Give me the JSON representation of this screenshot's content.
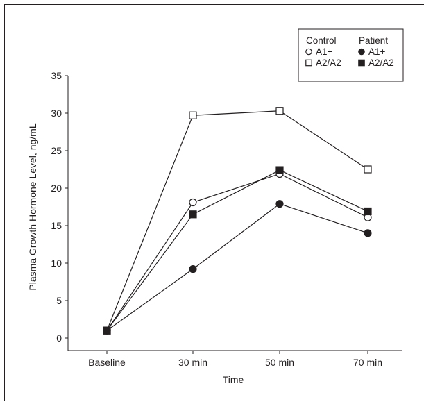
{
  "chart_data": {
    "type": "line",
    "xlabel": "Time",
    "ylabel": "Plasma Growth Hormone Level, ng/mL",
    "categories": [
      "Baseline",
      "30 min",
      "50 min",
      "70 min"
    ],
    "ylim": [
      0,
      35
    ],
    "yticks": [
      0,
      5,
      10,
      15,
      20,
      25,
      30,
      35
    ],
    "grid": false,
    "legend": {
      "placement": "top-right",
      "groups": [
        {
          "title": "Control",
          "entries": [
            "A1+",
            "A2/A2"
          ]
        },
        {
          "title": "Patient",
          "entries": [
            "A1+",
            "A2/A2"
          ]
        }
      ]
    },
    "series": [
      {
        "group": "Control",
        "label": "A1+",
        "marker": "open-circle",
        "values": [
          1,
          18.1,
          21.9,
          16.1
        ]
      },
      {
        "group": "Control",
        "label": "A2/A2",
        "marker": "open-square",
        "values": [
          1,
          29.7,
          30.3,
          22.5
        ]
      },
      {
        "group": "Patient",
        "label": "A1+",
        "marker": "filled-circle",
        "values": [
          1,
          9.2,
          17.9,
          14
        ]
      },
      {
        "group": "Patient",
        "label": "A2/A2",
        "marker": "filled-square",
        "values": [
          1,
          16.5,
          22.4,
          16.9
        ]
      }
    ],
    "colors": {
      "ink": "#231f20",
      "open_fill": "#ffffff"
    }
  }
}
